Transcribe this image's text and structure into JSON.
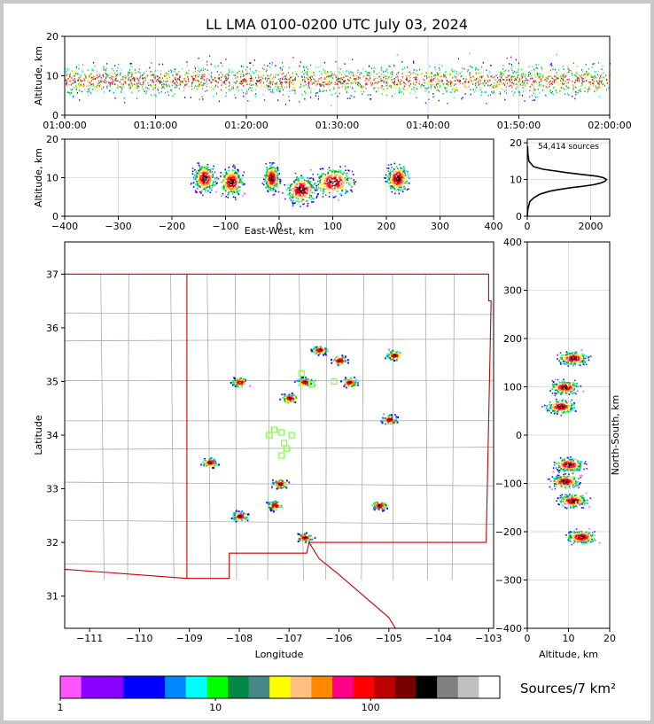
{
  "title": "LL LMA 0100-0200 UTC July 03, 2024",
  "colors": {
    "frame": "#000000",
    "state_border": "#cc0000",
    "county_border": "#aaaaaa",
    "grid": "#dddddd",
    "station": "#80ff40",
    "histogram": "#000000"
  },
  "chart_data": [
    {
      "id": "time-altitude",
      "type": "heatmap",
      "ylabel": "Altitude, km",
      "xticks": [
        "01:00:00",
        "01:10:00",
        "01:20:00",
        "01:30:00",
        "01:40:00",
        "01:50:00",
        "02:00:00"
      ],
      "yticks": [
        "0",
        "10",
        "20"
      ],
      "xlim": [
        "01:00:00",
        "02:00:00"
      ],
      "ylim": [
        0,
        20
      ],
      "peak_altitude_km": 9
    },
    {
      "id": "ew-altitude",
      "type": "heatmap",
      "xlabel": "East-West, km",
      "ylabel": "Altitude, km",
      "xticks": [
        "-400",
        "-300",
        "-200",
        "-100",
        "0",
        "100",
        "200",
        "300",
        "400"
      ],
      "yticks": [
        "0",
        "10",
        "20"
      ],
      "xlim": [
        -400,
        400
      ],
      "ylim": [
        0,
        20
      ],
      "clusters": [
        {
          "x": -140,
          "z": 10,
          "w": 30
        },
        {
          "x": -90,
          "z": 9,
          "w": 30
        },
        {
          "x": -15,
          "z": 10,
          "w": 20
        },
        {
          "x": 40,
          "z": 7,
          "w": 40
        },
        {
          "x": 100,
          "z": 9,
          "w": 50
        },
        {
          "x": 220,
          "z": 10,
          "w": 30
        }
      ]
    },
    {
      "id": "altitude-histogram",
      "type": "line",
      "annotation": "54,414 sources",
      "xticks": [
        "0",
        "2000"
      ],
      "yticks": [
        "0",
        "10",
        "20"
      ],
      "xlim": [
        0,
        2600
      ],
      "ylim": [
        0,
        21
      ],
      "x": [
        0,
        20,
        80,
        200,
        400,
        700,
        1000,
        1400,
        1800,
        2100,
        2300,
        2450,
        2500,
        2400,
        2200,
        1800,
        1300,
        900,
        500,
        200,
        50,
        20,
        10
      ],
      "y": [
        0,
        2,
        4,
        5,
        6,
        6.8,
        7.3,
        7.8,
        8.2,
        8.6,
        9.0,
        9.5,
        10.0,
        10.5,
        10.9,
        11.3,
        11.8,
        12.3,
        12.8,
        13.5,
        15,
        17,
        19
      ]
    },
    {
      "id": "plan-view",
      "type": "heatmap",
      "xlabel": "Longitude",
      "ylabel": "Latitude",
      "xticks": [
        "−111",
        "−110",
        "−109",
        "−108",
        "−107",
        "−106",
        "−105",
        "−104",
        "−103"
      ],
      "yticks": [
        "31",
        "32",
        "33",
        "34",
        "35",
        "36",
        "37"
      ],
      "xlim": [
        -111.5,
        -102.9
      ],
      "ylim": [
        30.4,
        37.6
      ],
      "storms": [
        {
          "lon": -106.4,
          "lat": 35.6
        },
        {
          "lon": -106.0,
          "lat": 35.4
        },
        {
          "lon": -104.9,
          "lat": 35.5
        },
        {
          "lon": -105.8,
          "lat": 35.0
        },
        {
          "lon": -106.7,
          "lat": 35.0
        },
        {
          "lon": -107.0,
          "lat": 34.7
        },
        {
          "lon": -108.0,
          "lat": 35.0
        },
        {
          "lon": -108.6,
          "lat": 33.5
        },
        {
          "lon": -107.2,
          "lat": 33.1
        },
        {
          "lon": -107.3,
          "lat": 32.7
        },
        {
          "lon": -108.0,
          "lat": 32.5
        },
        {
          "lon": -106.7,
          "lat": 32.1
        },
        {
          "lon": -105.2,
          "lat": 32.7
        },
        {
          "lon": -105.0,
          "lat": 34.3
        }
      ],
      "stations": [
        {
          "lon": -107.3,
          "lat": 34.1
        },
        {
          "lon": -107.15,
          "lat": 34.05
        },
        {
          "lon": -106.95,
          "lat": 34.0
        },
        {
          "lon": -107.1,
          "lat": 33.85
        },
        {
          "lon": -107.05,
          "lat": 33.75
        },
        {
          "lon": -107.15,
          "lat": 33.62
        },
        {
          "lon": -107.4,
          "lat": 34.0
        },
        {
          "lon": -106.55,
          "lat": 34.95
        },
        {
          "lon": -106.1,
          "lat": 35.0
        },
        {
          "lon": -106.75,
          "lat": 35.15
        }
      ]
    },
    {
      "id": "ns-altitude",
      "type": "heatmap",
      "xlabel": "Altitude, km",
      "ylabel": "North-South, km",
      "xticks": [
        "0",
        "10",
        "20"
      ],
      "yticks": [
        "-400",
        "-300",
        "-200",
        "-100",
        "0",
        "100",
        "200",
        "300",
        "400"
      ],
      "xlim": [
        0,
        20
      ],
      "ylim": [
        -400,
        400
      ],
      "clusters": [
        {
          "y": 160,
          "z": 11
        },
        {
          "y": 100,
          "z": 9
        },
        {
          "y": 60,
          "z": 8
        },
        {
          "y": -60,
          "z": 10
        },
        {
          "y": -95,
          "z": 9
        },
        {
          "y": -135,
          "z": 11
        },
        {
          "y": -210,
          "z": 13
        }
      ]
    }
  ],
  "colorbar": {
    "label": "Sources/7 km²",
    "ticks": [
      "1",
      "10",
      "100"
    ],
    "colors": [
      "#ff55ff",
      "#8800ff",
      "#8800ff",
      "#0000ff",
      "#0000ff",
      "#0088ff",
      "#00ffff",
      "#00ff00",
      "#008844",
      "#448888",
      "#ffff00",
      "#ffc080",
      "#ff8800",
      "#ff0088",
      "#ff0000",
      "#bb0000",
      "#770000",
      "#000000",
      "#808080",
      "#c0c0c0",
      "#ffffff"
    ]
  }
}
